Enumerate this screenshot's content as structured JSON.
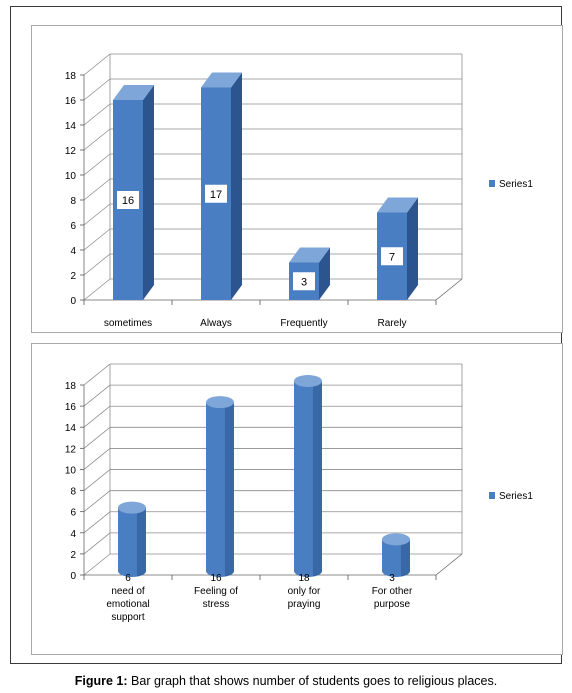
{
  "caption": {
    "prefix": "Figure 1:",
    "text": " Bar graph that shows number of students goes to religious places."
  },
  "colors": {
    "front": "#4a7ec2",
    "side": "#2c5590",
    "top": "#7fa6d8",
    "grid": "#8c8c8c"
  },
  "chart_data": [
    {
      "type": "bar",
      "style": "3d-box",
      "categories": [
        [
          "sometimes"
        ],
        [
          "Always"
        ],
        [
          "Frequently"
        ],
        [
          "Rarely"
        ]
      ],
      "series": [
        {
          "name": "Series1",
          "values": [
            16,
            17,
            3,
            7
          ]
        }
      ],
      "data_labels": [
        "16",
        "17",
        "3",
        "7"
      ],
      "ylim": [
        0,
        18
      ],
      "yticks": [
        "0",
        "2",
        "4",
        "6",
        "8",
        "10",
        "12",
        "14",
        "16",
        "18"
      ],
      "grid": true,
      "legend": "right"
    },
    {
      "type": "bar",
      "style": "3d-cylinder",
      "categories": [
        [
          "need of",
          "emotional",
          "support"
        ],
        [
          "Feeling of",
          "stress"
        ],
        [
          "only for",
          "praying"
        ],
        [
          "For other",
          "purpose"
        ]
      ],
      "series": [
        {
          "name": "Series1",
          "values": [
            6,
            16,
            18,
            3
          ]
        }
      ],
      "data_labels": [
        "6",
        "16",
        "18",
        "3"
      ],
      "ylim": [
        0,
        18
      ],
      "yticks": [
        "0",
        "2",
        "4",
        "6",
        "8",
        "10",
        "12",
        "14",
        "16",
        "18"
      ],
      "grid": true,
      "legend": "right"
    }
  ]
}
